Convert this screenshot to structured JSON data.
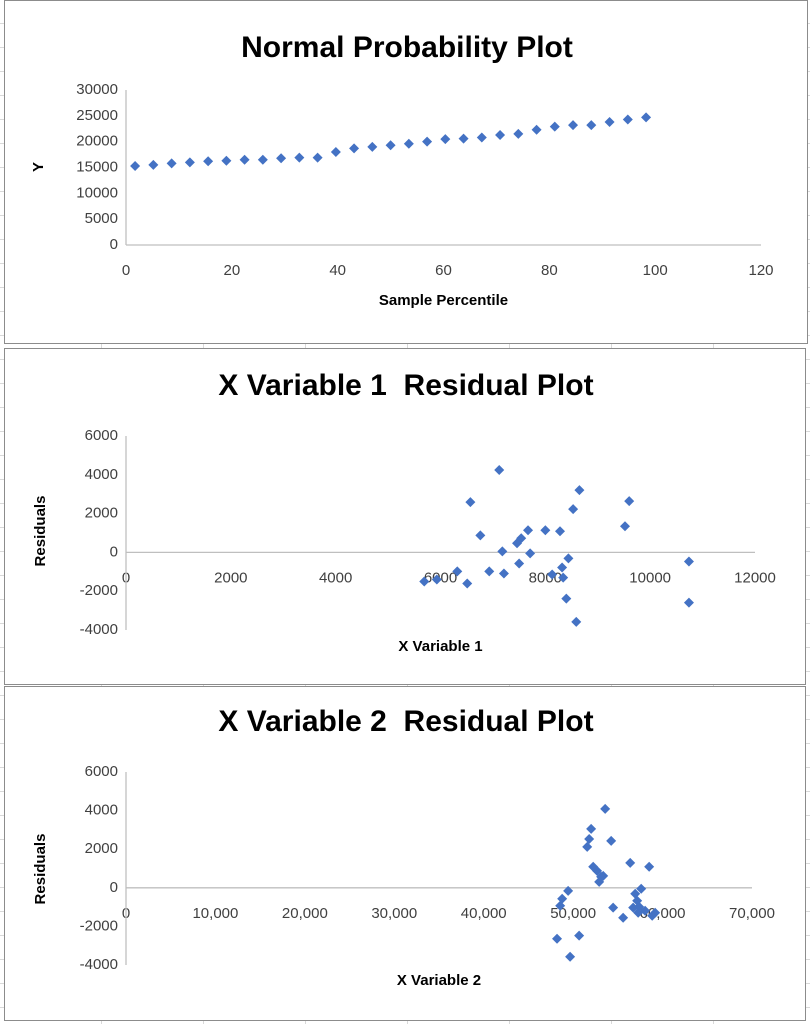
{
  "chart_data": [
    {
      "type": "scatter",
      "title": "Normal Probability Plot",
      "x_label": "Sample Percentile",
      "y_label": "Y",
      "color": "#4472c4",
      "x": [
        1.72,
        5.17,
        8.62,
        12.07,
        15.52,
        18.97,
        22.41,
        25.86,
        29.31,
        32.76,
        36.21,
        39.66,
        43.1,
        46.55,
        50,
        53.45,
        56.9,
        60.34,
        63.79,
        67.24,
        70.69,
        74.14,
        77.59,
        81.03,
        84.48,
        87.93,
        91.38,
        94.83,
        98.28
      ],
      "values": [
        15300,
        15500,
        15800,
        16000,
        16200,
        16300,
        16500,
        16500,
        16800,
        16900,
        16900,
        18000,
        18700,
        19000,
        19300,
        19600,
        20000,
        20500,
        20600,
        20800,
        21300,
        21500,
        22300,
        22900,
        23200,
        23200,
        23800,
        24300,
        24700
      ],
      "xlim": [
        0,
        120
      ],
      "xticks": [
        0,
        20,
        40,
        60,
        80,
        100,
        120
      ],
      "ylim": [
        0,
        30000
      ],
      "yticks": [
        0,
        5000,
        10000,
        15000,
        20000,
        25000,
        30000
      ]
    },
    {
      "type": "scatter",
      "title": "X Variable 1  Residual Plot",
      "x_label": "X Variable 1",
      "y_label": "Residuals",
      "color": "#4472c4",
      "x": [
        5690,
        5930,
        6320,
        6510,
        6570,
        6760,
        6930,
        7120,
        7180,
        7210,
        7460,
        7500,
        7540,
        7670,
        7710,
        8000,
        8130,
        8280,
        8320,
        8340,
        8400,
        8440,
        8530,
        8590,
        8650,
        9520,
        9600,
        10740,
        10740
      ],
      "values": [
        -1500,
        -1400,
        -980,
        -1600,
        2590,
        880,
        -980,
        4250,
        50,
        -1090,
        470,
        -570,
        730,
        1140,
        -50,
        1140,
        -1140,
        1090,
        -780,
        -1300,
        -2380,
        -310,
        2230,
        -3580,
        3210,
        1350,
        2640,
        -470,
        -2590
      ],
      "xlim": [
        0,
        12000
      ],
      "xticks": [
        0,
        2000,
        4000,
        6000,
        8000,
        10000,
        12000
      ],
      "ylim": [
        -4000,
        6000
      ],
      "yticks": [
        -4000,
        -2000,
        0,
        2000,
        4000,
        6000
      ]
    },
    {
      "type": "scatter",
      "title": "X Variable 2  Residual Plot",
      "x_label": "X Variable 2",
      "y_label": "Residuals",
      "color": "#4472c4",
      "x": [
        48200,
        48550,
        48770,
        49440,
        49660,
        50670,
        51570,
        51790,
        52010,
        52240,
        52680,
        52910,
        53130,
        53360,
        53580,
        54250,
        54470,
        55590,
        56380,
        56710,
        56940,
        57160,
        57270,
        57380,
        57610,
        58050,
        58500,
        58840,
        59170
      ],
      "values": [
        -2640,
        -930,
        -570,
        -160,
        -3570,
        -2480,
        2120,
        2530,
        3050,
        1090,
        880,
        310,
        570,
        620,
        4090,
        2430,
        -1030,
        -1550,
        1290,
        -1030,
        -310,
        -670,
        -1290,
        -980,
        -50,
        -1190,
        1090,
        -1450,
        -1290
      ],
      "xlim": [
        0,
        70000
      ],
      "xticks": [
        0,
        {
          "value": 10000,
          "label": "10,000"
        },
        {
          "value": 20000,
          "label": "20,000"
        },
        {
          "value": 30000,
          "label": "30,000"
        },
        {
          "value": 40000,
          "label": "40,000"
        },
        {
          "value": 50000,
          "label": "50,000"
        },
        {
          "value": 60000,
          "label": "60,000"
        },
        {
          "value": 70000,
          "label": "70,000"
        }
      ],
      "ylim": [
        -4000,
        6000
      ],
      "yticks": [
        -4000,
        -2000,
        0,
        2000,
        4000,
        6000
      ]
    }
  ]
}
